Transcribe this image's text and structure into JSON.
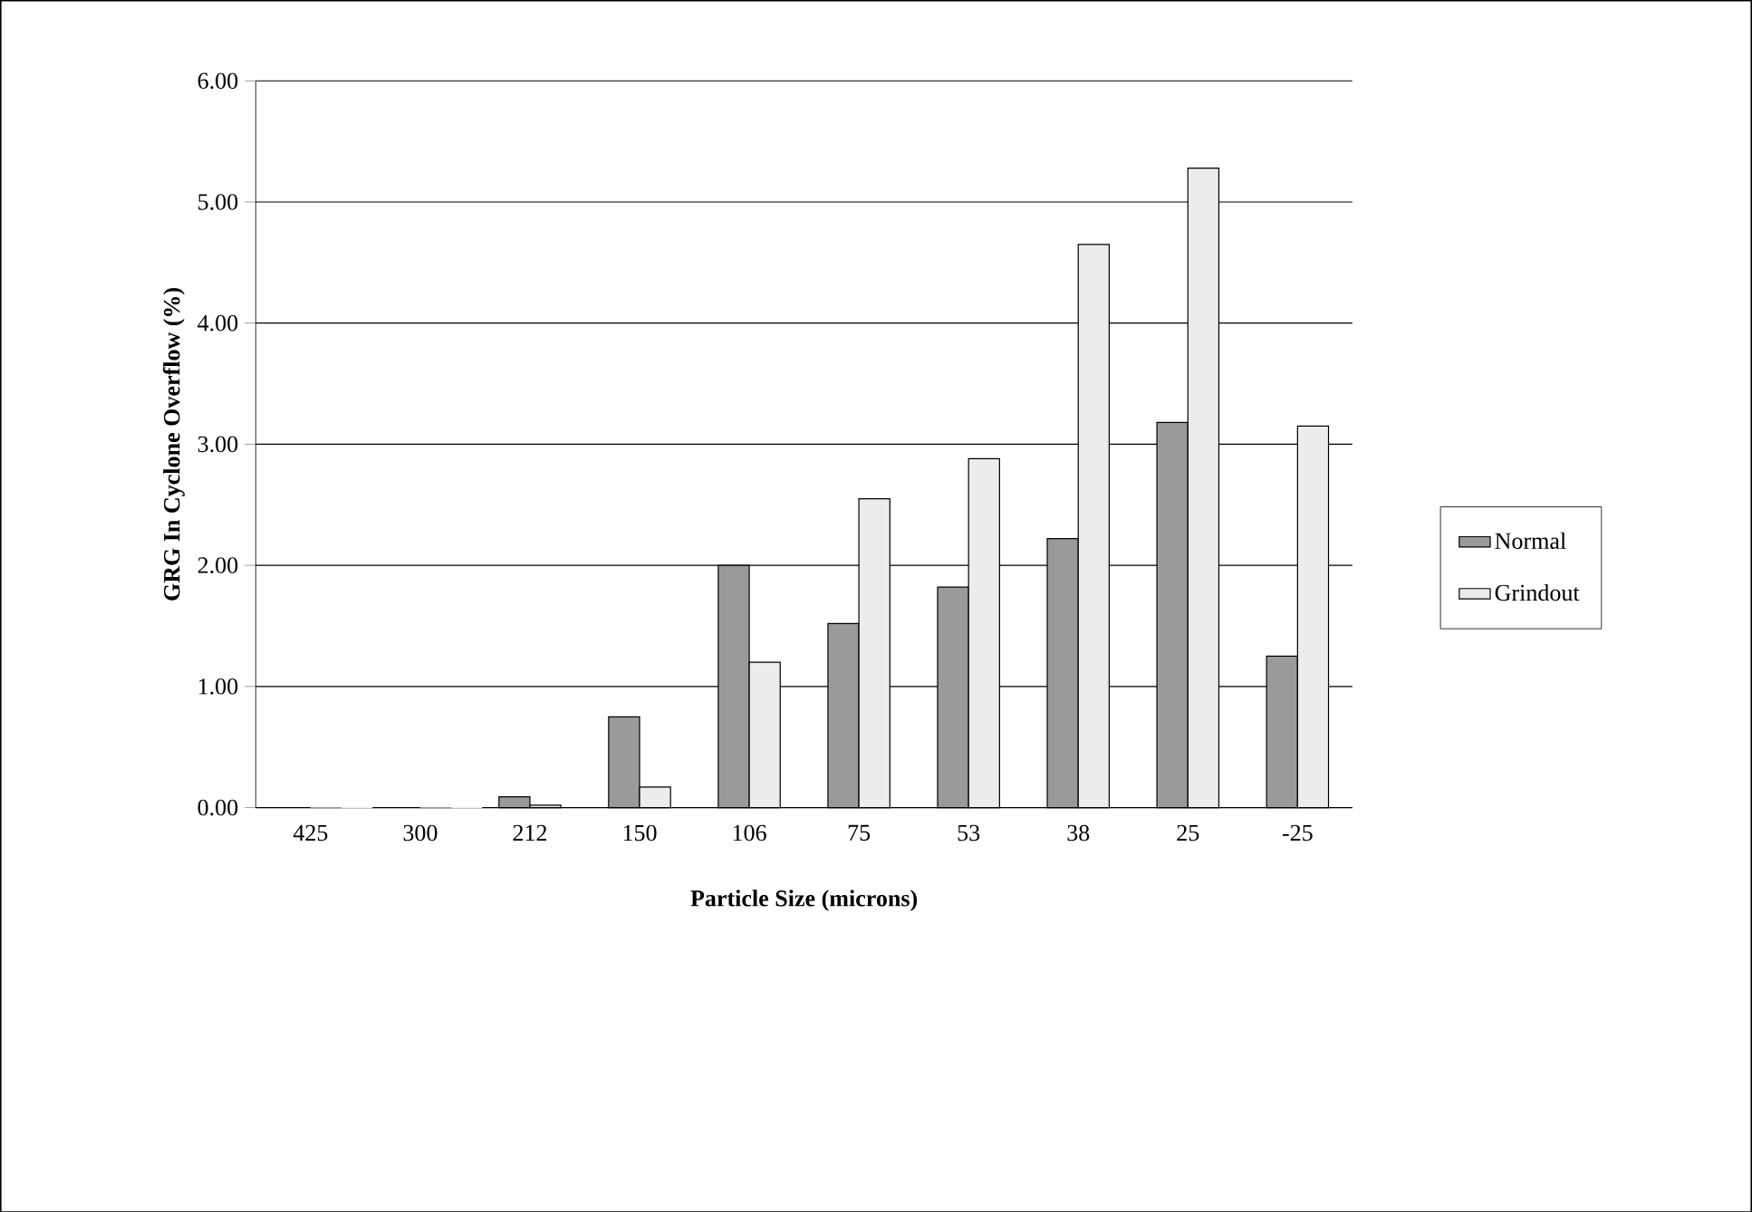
{
  "chart_data": {
    "type": "bar",
    "xlabel": "Particle Size (microns)",
    "ylabel": "GRG In Cyclone Overflow (%)",
    "categories": [
      "425",
      "300",
      "212",
      "150",
      "106",
      "75",
      "53",
      "38",
      "25",
      "-25"
    ],
    "series": [
      {
        "name": "Normal",
        "color": "#9a9a9a",
        "values": [
          0,
          0,
          0.09,
          0.75,
          2.0,
          1.52,
          1.82,
          2.22,
          3.18,
          1.25
        ]
      },
      {
        "name": "Grindout",
        "color": "#ececec",
        "values": [
          0,
          0,
          0.02,
          0.17,
          1.2,
          2.55,
          2.88,
          4.65,
          5.28,
          3.15
        ]
      }
    ],
    "ylim": [
      0,
      6
    ],
    "yticks": [
      {
        "value": 0,
        "label": "0.00"
      },
      {
        "value": 1,
        "label": "1.00"
      },
      {
        "value": 2,
        "label": "2.00"
      },
      {
        "value": 3,
        "label": "3.00"
      },
      {
        "value": 4,
        "label": "4.00"
      },
      {
        "value": 5,
        "label": "5.00"
      },
      {
        "value": 6,
        "label": "6.00"
      }
    ],
    "grid": "y",
    "legend": "right"
  }
}
